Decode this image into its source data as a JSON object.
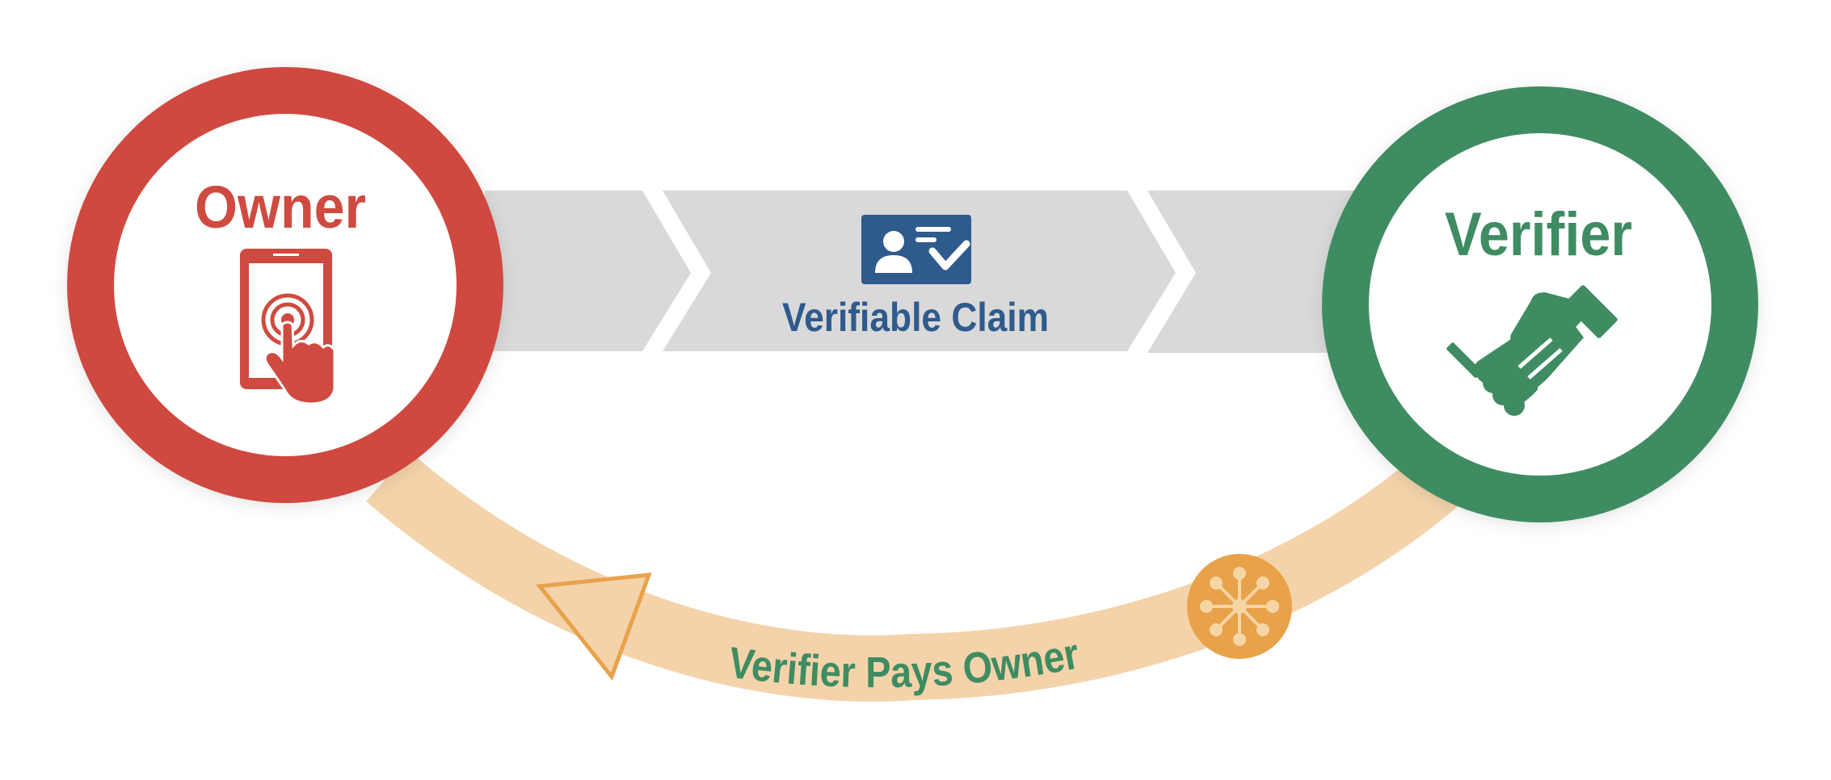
{
  "owner": {
    "label": "Owner",
    "icon": "tablet-touch-icon"
  },
  "verifier": {
    "label": "Verifier",
    "icon": "handshake-icon"
  },
  "claim": {
    "label": "Verifiable Claim",
    "icon": "id-card-check-icon"
  },
  "payment": {
    "label": "Verifier Pays Owner",
    "icon": "network-token-icon"
  },
  "colors": {
    "owner": "#cf4a40",
    "verifier": "#3f8c62",
    "claim": "#2f5a8c",
    "band": "#d9d9d9",
    "arc": "#f4d3aa",
    "arc_accent": "#e8a24a",
    "payment_text": "#3f8c62"
  }
}
